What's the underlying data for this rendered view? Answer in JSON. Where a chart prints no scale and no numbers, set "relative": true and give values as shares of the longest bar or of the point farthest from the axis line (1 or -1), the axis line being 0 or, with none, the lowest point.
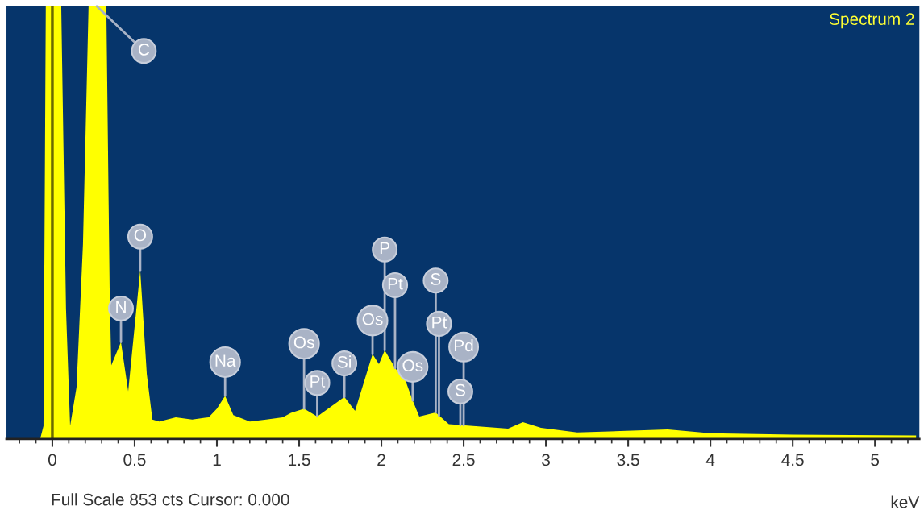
{
  "chart_data": {
    "type": "area",
    "title": "Spectrum 2",
    "xlabel": "keV",
    "relative": true,
    "x": [
      -0.25,
      -0.074,
      -0.054,
      -0.04,
      0.054,
      0.083,
      0.108,
      0.147,
      0.186,
      0.22,
      0.328,
      0.348,
      0.358,
      0.417,
      0.461,
      0.534,
      0.574,
      0.608,
      0.65,
      0.75,
      0.85,
      0.95,
      1.0,
      1.05,
      1.1,
      1.2,
      1.3,
      1.4,
      1.45,
      1.53,
      1.61,
      1.775,
      1.84,
      1.946,
      1.985,
      2.02,
      2.083,
      2.147,
      2.19,
      2.23,
      2.33,
      2.41,
      2.77,
      2.86,
      2.97,
      3.19,
      3.74,
      4.0,
      4.5,
      5.25
    ],
    "series": [
      {
        "color": "#ffff00",
        "values": [
          0,
          0,
          0.03,
          1,
          1,
          0.3,
          0.03,
          0.12,
          0.45,
          1,
          1,
          0.35,
          0.17,
          0.224,
          0.11,
          0.39,
          0.15,
          0.045,
          0.04,
          0.05,
          0.045,
          0.05,
          0.07,
          0.1,
          0.055,
          0.04,
          0.045,
          0.05,
          0.06,
          0.07,
          0.052,
          0.097,
          0.065,
          0.196,
          0.173,
          0.205,
          0.164,
          0.134,
          0.089,
          0.052,
          0.061,
          0.034,
          0.024,
          0.039,
          0.026,
          0.015,
          0.022,
          0.013,
          0.01,
          0.008
        ]
      }
    ],
    "xlim": [
      -0.279,
      5.27
    ],
    "xticks": [
      0,
      0.5,
      1,
      1.5,
      2,
      2.5,
      3,
      3.5,
      4,
      4.5,
      5,
      {
        "value": -0.2,
        "label": null
      },
      {
        "value": -0.1,
        "label": null
      },
      {
        "value": 0.1,
        "label": null
      },
      {
        "value": 0.2,
        "label": null
      },
      {
        "value": 0.3,
        "label": null
      },
      {
        "value": 0.4,
        "label": null
      },
      {
        "value": 0.6,
        "label": null
      },
      {
        "value": 0.7,
        "label": null
      },
      {
        "value": 0.8,
        "label": null
      },
      {
        "value": 0.9,
        "label": null
      },
      {
        "value": 1.1,
        "label": null
      },
      {
        "value": 1.2,
        "label": null
      },
      {
        "value": 1.3,
        "label": null
      },
      {
        "value": 1.4,
        "label": null
      },
      {
        "value": 1.6,
        "label": null
      },
      {
        "value": 1.7,
        "label": null
      },
      {
        "value": 1.8,
        "label": null
      },
      {
        "value": 1.9,
        "label": null
      },
      {
        "value": 2.1,
        "label": null
      },
      {
        "value": 2.2,
        "label": null
      },
      {
        "value": 2.3,
        "label": null
      },
      {
        "value": 2.4,
        "label": null
      },
      {
        "value": 2.6,
        "label": null
      },
      {
        "value": 2.7,
        "label": null
      },
      {
        "value": 2.8,
        "label": null
      },
      {
        "value": 2.9,
        "label": null
      },
      {
        "value": 3.1,
        "label": null
      },
      {
        "value": 3.2,
        "label": null
      },
      {
        "value": 3.3,
        "label": null
      },
      {
        "value": 3.4,
        "label": null
      },
      {
        "value": 3.6,
        "label": null
      },
      {
        "value": 3.7,
        "label": null
      },
      {
        "value": 3.8,
        "label": null
      },
      {
        "value": 3.9,
        "label": null
      },
      {
        "value": 4.1,
        "label": null
      },
      {
        "value": 4.2,
        "label": null
      },
      {
        "value": 4.3,
        "label": null
      },
      {
        "value": 4.4,
        "label": null
      },
      {
        "value": 4.6,
        "label": null
      },
      {
        "value": 4.7,
        "label": null
      },
      {
        "value": 4.8,
        "label": null
      },
      {
        "value": 4.9,
        "label": null
      },
      {
        "value": 5.1,
        "label": null
      },
      {
        "value": 5.2,
        "label": null
      }
    ],
    "ref_lines": [
      {
        "axis": "x",
        "value": 0,
        "color": "#6b6b00"
      }
    ],
    "annotations": [
      {
        "text": "C",
        "x": 0.27,
        "y": 1
      },
      {
        "text": "N",
        "x": 0.417,
        "y": 0.224
      },
      {
        "text": "O",
        "x": 0.534,
        "y": 0.39
      },
      {
        "text": "Na",
        "x": 1.05,
        "y": 0.1
      },
      {
        "text": "Pt",
        "x": 1.61,
        "y": 0.052
      },
      {
        "text": "Os",
        "x": 1.53,
        "y": 0.07
      },
      {
        "text": "Si",
        "x": 1.775,
        "y": 0.097
      },
      {
        "text": "Os",
        "x": 1.946,
        "y": 0.196
      },
      {
        "text": "Pt",
        "x": 2.083,
        "y": 0.164
      },
      {
        "text": "P",
        "x": 2.02,
        "y": 0.205
      },
      {
        "text": "S",
        "x": 2.48,
        "y": 0.032
      },
      {
        "text": "Pd",
        "x": 2.5,
        "y": 0.0315
      },
      {
        "text": "Pt",
        "x": 2.35,
        "y": 0.054
      },
      {
        "text": "Os",
        "x": 2.19,
        "y": 0.089
      },
      {
        "text": "S",
        "x": 2.33,
        "y": 0.061
      },
      "Full Scale 853 cts Cursor: 0.000"
    ]
  }
}
